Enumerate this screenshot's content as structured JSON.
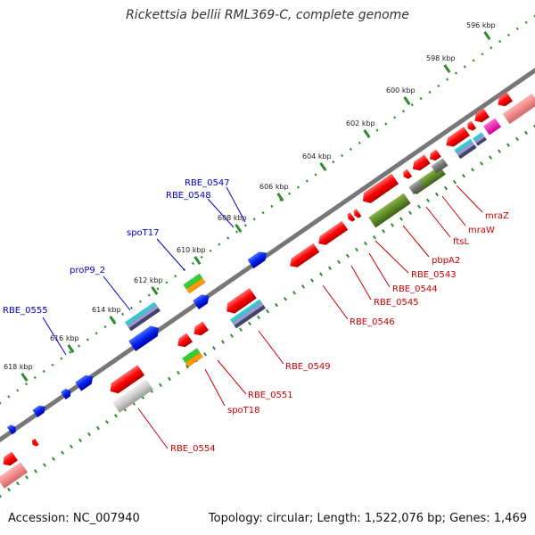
{
  "title": "Rickettsia bellii RML369-C, complete genome",
  "footer": {
    "accession": "Accession: NC_007940",
    "summary": "Topology: circular; Length: 1,522,076 bp; Genes: 1,469"
  },
  "ticks": [
    "596 kbp",
    "598 kbp",
    "600 kbp",
    "602 kbp",
    "604 kbp",
    "606 kbp",
    "608 kbp",
    "610 kbp",
    "612 kbp",
    "614 kbp",
    "616 kbp",
    "618 kbp"
  ],
  "genes_forward": [
    "RBE_0555",
    "proP9_2",
    "spoT17",
    "RBE_0548",
    "RBE_0547"
  ],
  "genes_reverse": [
    "RBE_0554",
    "spoT18",
    "RBE_0551",
    "RBE_0549",
    "RBE_0546",
    "RBE_0545",
    "RBE_0544",
    "RBE_0543",
    "pbpA2",
    "ftsL",
    "mraW",
    "mraZ"
  ],
  "colors": {
    "forward_label": "#0000cc",
    "reverse_label": "#cc0000",
    "backbone": "#777777",
    "tick_dots": "#2e8b2e"
  }
}
